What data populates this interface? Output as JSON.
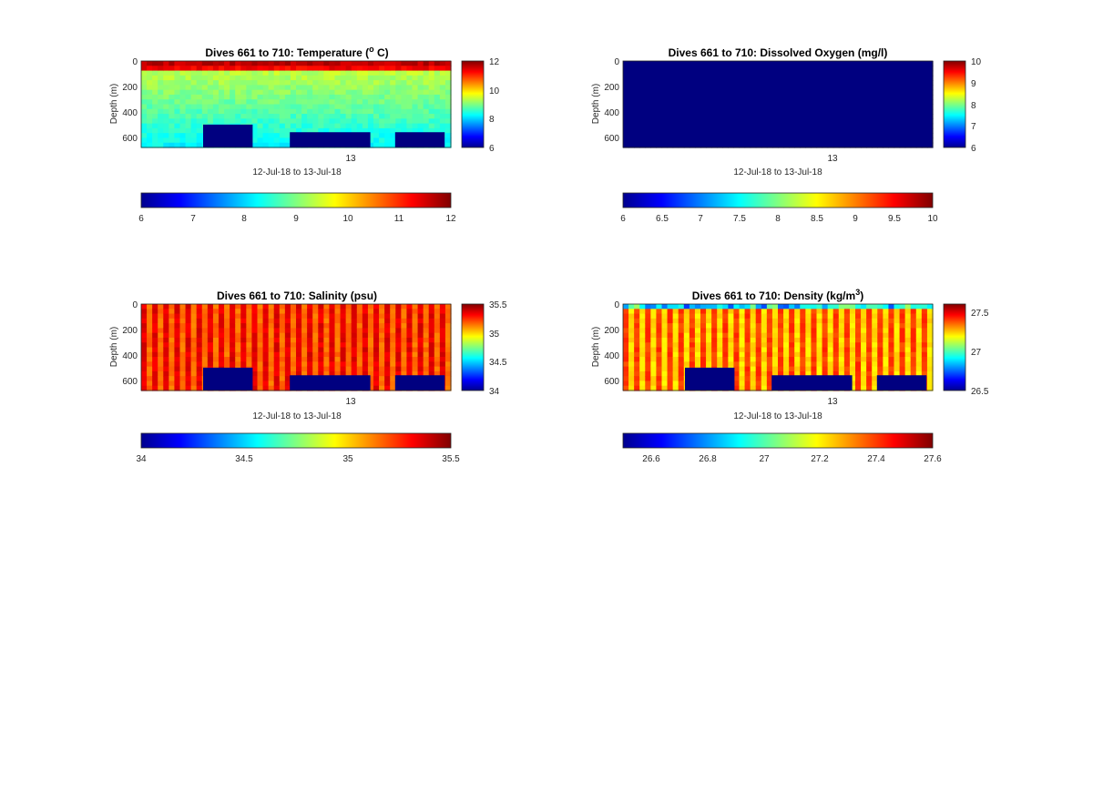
{
  "figure": {
    "date_range_label": "12-Jul-18 to 13-Jul-18",
    "day_tick_label": "13",
    "depth_label": "Depth (m)",
    "depth_ticks": [
      "0",
      "200",
      "400",
      "600"
    ]
  },
  "chart_data": [
    {
      "type": "heatmap",
      "title_prefix": "Dives 661 to 710: Temperature (",
      "title_sup": "o",
      "title_suffix": " C)",
      "variable": "temperature",
      "xlabel": "12-Jul-18 to 13-Jul-18",
      "ylabel": "Depth (m)",
      "x_tick_labels": [
        "13"
      ],
      "ylim": [
        0,
        680
      ],
      "y_reversed": true,
      "clim": [
        6,
        12
      ],
      "colormap": "jet",
      "surface_value": 11.2,
      "mid_value": 9.4,
      "deep_value": 8.2,
      "side_colorbar_ticks": [
        "12",
        "10",
        "8",
        "6"
      ],
      "bottom_colorbar_ticks": [
        "6",
        "7",
        "8",
        "9",
        "10",
        "11",
        "12"
      ],
      "no_data_regions": [
        {
          "x_start": 0.2,
          "x_end": 0.36,
          "depth_start": 500
        },
        {
          "x_start": 0.48,
          "x_end": 0.74,
          "depth_start": 560
        },
        {
          "x_start": 0.82,
          "x_end": 0.98,
          "depth_start": 560
        }
      ]
    },
    {
      "type": "heatmap",
      "title_prefix": "Dives 661 to 710: Dissolved Oxygen (mg/l)",
      "title_sup": "",
      "title_suffix": "",
      "variable": "dissolved_oxygen",
      "xlabel": "12-Jul-18 to 13-Jul-18",
      "ylabel": "Depth (m)",
      "x_tick_labels": [
        "13"
      ],
      "ylim": [
        0,
        680
      ],
      "y_reversed": true,
      "clim": [
        6,
        10
      ],
      "colormap": "jet",
      "uniform_value": 6,
      "side_colorbar_ticks": [
        "10",
        "9",
        "8",
        "7",
        "6"
      ],
      "bottom_colorbar_ticks": [
        "6",
        "6.5",
        "7",
        "7.5",
        "8",
        "8.5",
        "9",
        "9.5",
        "10"
      ],
      "no_data_regions": []
    },
    {
      "type": "heatmap",
      "title_prefix": "Dives 661 to 710: Salinity (psu)",
      "title_sup": "",
      "title_suffix": "",
      "variable": "salinity",
      "xlabel": "12-Jul-18 to 13-Jul-18",
      "ylabel": "Depth (m)",
      "x_tick_labels": [
        "13"
      ],
      "ylim": [
        0,
        680
      ],
      "y_reversed": true,
      "clim": [
        34,
        35.5
      ],
      "colormap": "jet",
      "high_value": 35.35,
      "low_value": 35.15,
      "side_colorbar_ticks": [
        "35.5",
        "35",
        "34.5",
        "34"
      ],
      "bottom_colorbar_ticks": [
        "34",
        "34.5",
        "35",
        "35.5"
      ],
      "no_data_regions": [
        {
          "x_start": 0.2,
          "x_end": 0.36,
          "depth_start": 500
        },
        {
          "x_start": 0.48,
          "x_end": 0.74,
          "depth_start": 560
        },
        {
          "x_start": 0.82,
          "x_end": 0.98,
          "depth_start": 560
        }
      ]
    },
    {
      "type": "heatmap",
      "title_prefix": "Dives 661 to 710: Density (kg/m",
      "title_sup": "3",
      "title_suffix": ")",
      "variable": "density",
      "xlabel": "12-Jul-18 to 13-Jul-18",
      "ylabel": "Depth (m)",
      "x_tick_labels": [
        "13"
      ],
      "ylim": [
        0,
        680
      ],
      "y_reversed": true,
      "clim": [
        26.5,
        27.6
      ],
      "colormap": "jet",
      "surface_value": 26.9,
      "high_value": 27.4,
      "low_value": 27.22,
      "side_colorbar_ticks": [
        "27.5",
        "27",
        "26.5"
      ],
      "bottom_colorbar_ticks": [
        "26.6",
        "26.8",
        "27",
        "27.2",
        "27.4",
        "27.6"
      ],
      "no_data_regions": [
        {
          "x_start": 0.2,
          "x_end": 0.36,
          "depth_start": 500
        },
        {
          "x_start": 0.48,
          "x_end": 0.74,
          "depth_start": 560
        },
        {
          "x_start": 0.82,
          "x_end": 0.98,
          "depth_start": 560
        }
      ]
    }
  ]
}
